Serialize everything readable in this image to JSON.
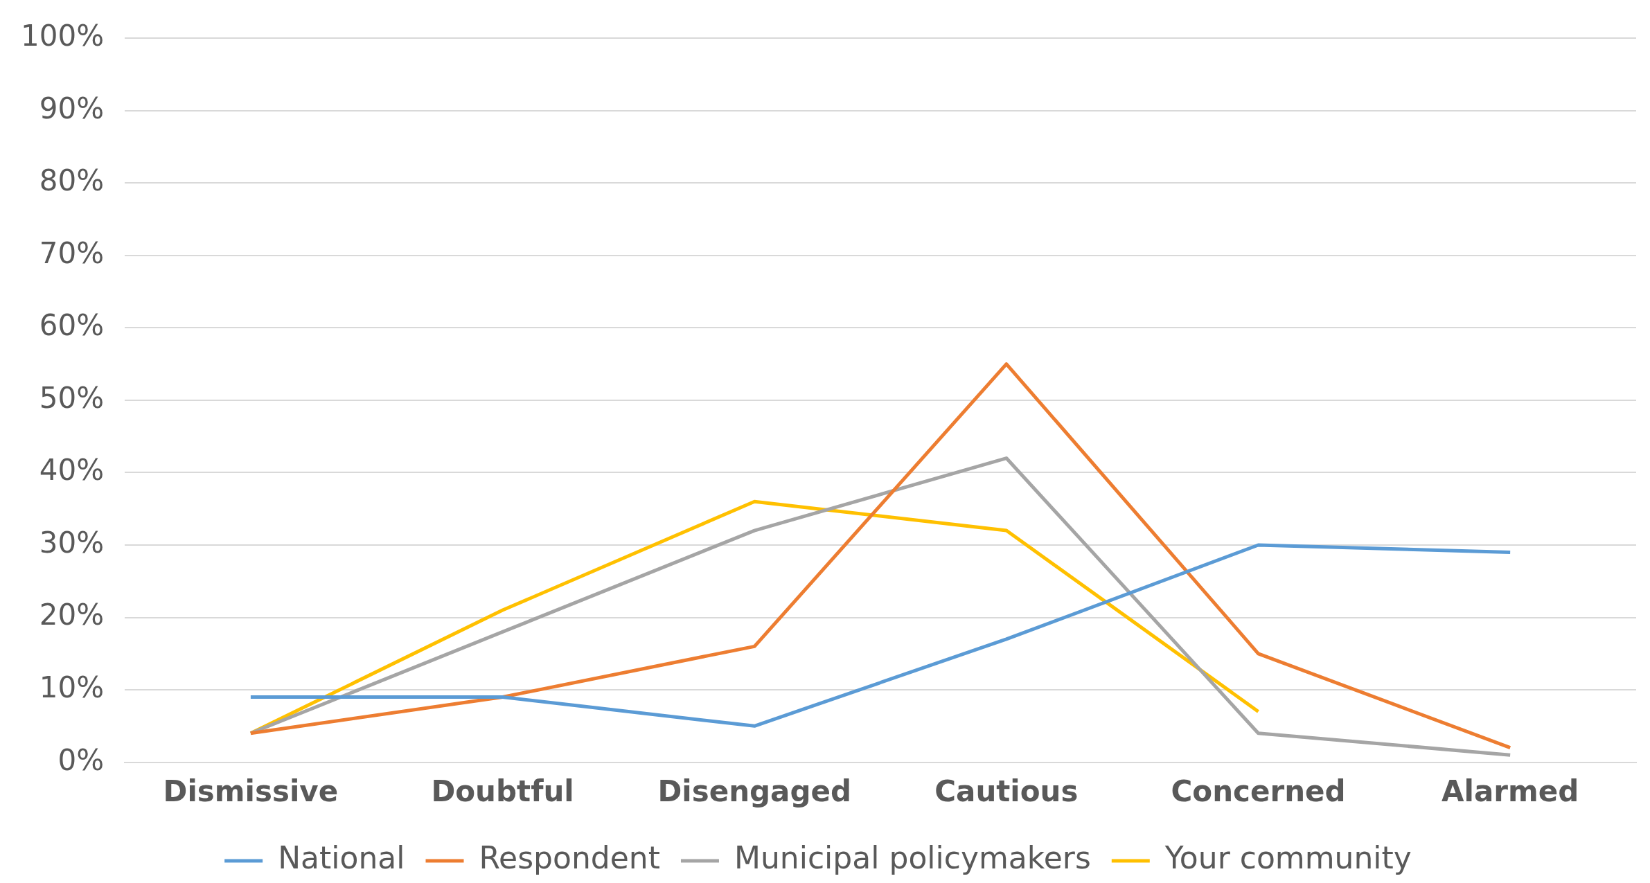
{
  "chart_data": {
    "type": "line",
    "categories": [
      "Dismissive",
      "Doubtful",
      "Disengaged",
      "Cautious",
      "Concerned",
      "Alarmed"
    ],
    "series": [
      {
        "name": "National",
        "color": "#5b9bd5",
        "values": [
          9,
          9,
          5,
          17,
          30,
          29
        ]
      },
      {
        "name": "Respondent",
        "color": "#ed7d31",
        "values": [
          4,
          9,
          16,
          55,
          15,
          2
        ]
      },
      {
        "name": "Municipal policymakers",
        "color": "#a5a5a5",
        "values": [
          4,
          18,
          32,
          42,
          4,
          1
        ]
      },
      {
        "name": "Your community",
        "color": "#ffc000",
        "values": [
          4,
          21,
          36,
          32,
          7,
          null
        ]
      }
    ],
    "ylim": [
      0,
      100
    ],
    "yticks": [
      {
        "value": 0,
        "label": "0%"
      },
      {
        "value": 10,
        "label": "10%"
      },
      {
        "value": 20,
        "label": "20%"
      },
      {
        "value": 30,
        "label": "30%"
      },
      {
        "value": 40,
        "label": "40%"
      },
      {
        "value": 50,
        "label": "50%"
      },
      {
        "value": 60,
        "label": "60%"
      },
      {
        "value": 70,
        "label": "70%"
      },
      {
        "value": 80,
        "label": "80%"
      },
      {
        "value": 90,
        "label": "90%"
      },
      {
        "value": 100,
        "label": "100%"
      }
    ],
    "grid": "y",
    "legend": "bottom",
    "marker": "none",
    "line_style": "solid"
  }
}
